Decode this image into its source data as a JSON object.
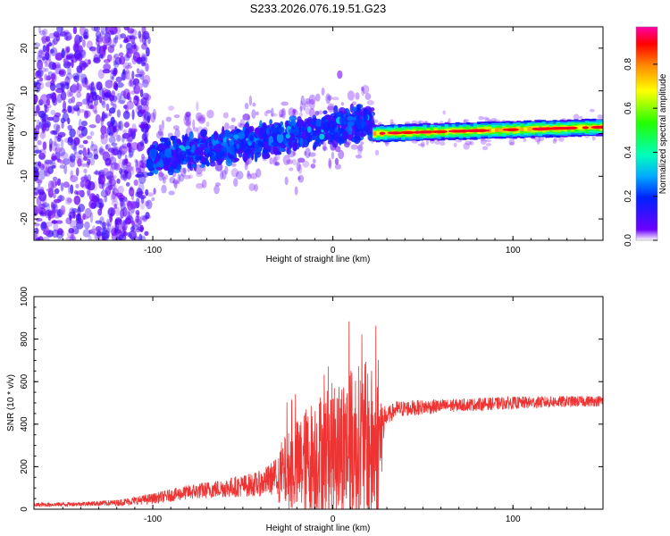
{
  "title": "S233.2026.076.19.51.G23",
  "chart_data": [
    {
      "type": "heatmap",
      "title": "S233.2026.076.19.51.G23",
      "xlabel": "Height of straight line (km)",
      "ylabel": "Frequency (Hz)",
      "xlim": [
        -166,
        150
      ],
      "ylim": [
        -25,
        25
      ],
      "xticks": [
        -100,
        0,
        100
      ],
      "yticks": [
        -20,
        -10,
        0,
        10,
        20
      ],
      "xtick_labels": [
        "-100",
        "0",
        "100"
      ],
      "ytick_labels": [
        "-20",
        "-10",
        "0",
        "10",
        "20"
      ],
      "colorbar": {
        "label": "Normalized spectral amplitude",
        "range": [
          0.0,
          0.97
        ],
        "ticks": [
          0.0,
          0.2,
          0.4,
          0.6,
          0.8
        ],
        "tick_labels": [
          "0.0",
          "0.2",
          "0.4",
          "0.6",
          "0.8"
        ],
        "colormap": "rainbow"
      },
      "features": [
        {
          "x_range": [
            -166,
            -102
          ],
          "freq_center": 0,
          "spread_hz": 25,
          "amplitude": 0.05,
          "description": "diffuse noise"
        },
        {
          "x_range": [
            -102,
            22
          ],
          "freq_start": -6,
          "freq_end": 3,
          "spread_hz": 5,
          "amplitude": 0.2,
          "description": "ramping band"
        },
        {
          "x_range": [
            22,
            150
          ],
          "freq_start": 0,
          "freq_end": 1.5,
          "spread_hz": 0.8,
          "amplitude": 0.9,
          "description": "coherent carrier"
        }
      ]
    },
    {
      "type": "line",
      "xlabel": "Height of straight line (km)",
      "ylabel": "SNR (10 * v/v)",
      "xlim": [
        -166,
        150
      ],
      "ylim": [
        0,
        1000
      ],
      "xticks": [
        -100,
        0,
        100
      ],
      "yticks": [
        0,
        200,
        400,
        600,
        800,
        1000
      ],
      "xtick_labels": [
        "-100",
        "0",
        "100"
      ],
      "ytick_labels": [
        "0",
        "200",
        "400",
        "600",
        "800",
        "1000"
      ],
      "series": [
        {
          "name": "SNR",
          "color": "#ee3333",
          "envelope_x": [
            -166,
            -140,
            -120,
            -100,
            -80,
            -60,
            -40,
            -30,
            -20,
            -10,
            0,
            10,
            18,
            25,
            29,
            35,
            50,
            70,
            100,
            150
          ],
          "envelope_mean": [
            20,
            25,
            30,
            50,
            80,
            100,
            120,
            160,
            200,
            250,
            280,
            300,
            300,
            280,
            430,
            470,
            480,
            490,
            500,
            510
          ],
          "envelope_noise": [
            10,
            10,
            15,
            25,
            35,
            45,
            60,
            90,
            140,
            180,
            200,
            230,
            250,
            220,
            40,
            40,
            35,
            30,
            30,
            25
          ]
        }
      ]
    }
  ],
  "colors": {
    "snr_line": "#ee3333",
    "axis": "#000000"
  }
}
